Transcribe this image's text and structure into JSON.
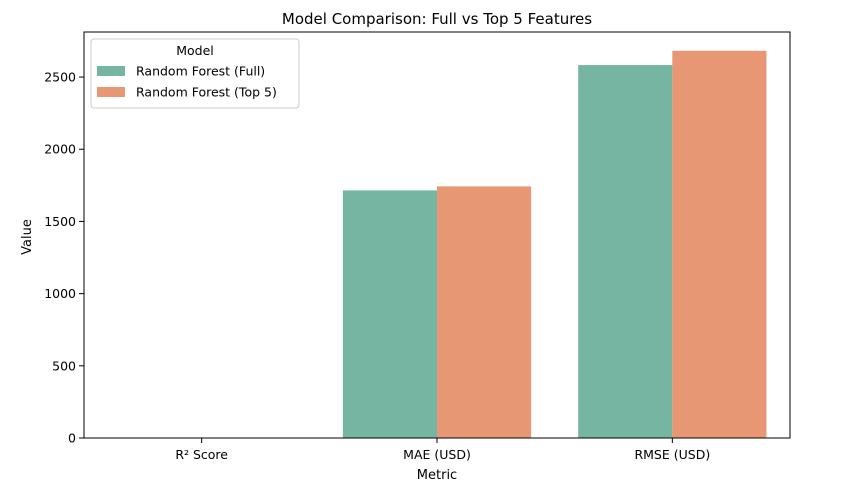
{
  "chart_data": {
    "type": "bar",
    "title": "Model Comparison: Full vs Top 5 Features",
    "xlabel": "Metric",
    "ylabel": "Value",
    "categories": [
      "R² Score",
      "MAE (USD)",
      "RMSE (USD)"
    ],
    "series": [
      {
        "name": "Random Forest (Full)",
        "color": "#76b5a1",
        "values": [
          0.75,
          1715,
          2583
        ]
      },
      {
        "name": "Random Forest (Top 5)",
        "color": "#e89774",
        "values": [
          0.74,
          1743,
          2682
        ]
      }
    ],
    "ylim": [
      0,
      2812
    ],
    "yticks": [
      0,
      500,
      1000,
      1500,
      2000,
      2500
    ],
    "grid": false,
    "legend": {
      "title": "Model",
      "placement": "top-left"
    }
  }
}
